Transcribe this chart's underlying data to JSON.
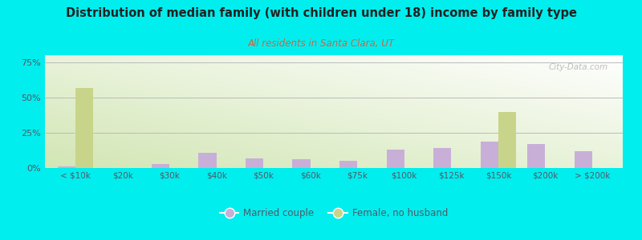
{
  "title": "Distribution of median family (with children under 18) income by family type",
  "subtitle": "All residents in Santa Clara, UT",
  "categories": [
    "< $10k",
    "$20k",
    "$30k",
    "$40k",
    "$50k",
    "$60k",
    "$75k",
    "$100k",
    "$125k",
    "$150k",
    "$200k",
    "> $200k"
  ],
  "married_couple": [
    1.0,
    0.0,
    3.0,
    11.0,
    7.0,
    6.0,
    5.0,
    13.0,
    14.0,
    19.0,
    17.0,
    12.0
  ],
  "female_no_husband": [
    57.0,
    0.0,
    0.0,
    0.0,
    0.0,
    0.0,
    0.0,
    0.0,
    0.0,
    40.0,
    0.0,
    0.0
  ],
  "married_color": "#c8afd8",
  "female_color": "#c8d48a",
  "bg_color": "#00eeee",
  "title_color": "#222222",
  "subtitle_color": "#cc6644",
  "axis_label_color": "#555566",
  "ylim": [
    0,
    80
  ],
  "yticks": [
    0,
    25,
    50,
    75
  ],
  "ytick_labels": [
    "0%",
    "25%",
    "50%",
    "75%"
  ],
  "watermark": "City-Data.com",
  "bar_width": 0.38
}
